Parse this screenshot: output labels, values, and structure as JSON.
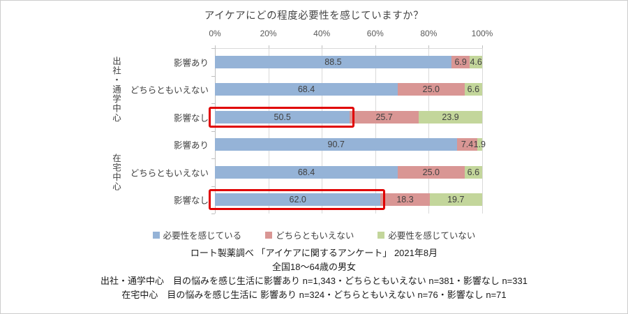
{
  "title": "アイケアにどの程度必要性を感じていますか？",
  "chart_data": {
    "type": "bar",
    "orientation": "horizontal",
    "stacked": true,
    "title": "アイケアにどの程度必要性を感じていますか？",
    "x_axis": {
      "min": 0,
      "max": 100,
      "tick_step": 20,
      "ticks": [
        "0%",
        "20%",
        "40%",
        "60%",
        "80%",
        "100%"
      ]
    },
    "series": [
      {
        "name": "必要性を感じている",
        "color": "#95B3D7"
      },
      {
        "name": "どちらともいえない",
        "color": "#D99694"
      },
      {
        "name": "必要性を感じていない",
        "color": "#C3D69B"
      }
    ],
    "groups": [
      {
        "label": "出社・通学中心",
        "rows": [
          {
            "label": "影響あり",
            "values": [
              88.5,
              6.9,
              4.6
            ],
            "highlighted": false
          },
          {
            "label": "どちらともいえない",
            "values": [
              68.4,
              25.0,
              6.6
            ],
            "highlighted": false
          },
          {
            "label": "影響なし",
            "values": [
              50.5,
              25.7,
              23.9
            ],
            "highlighted": true
          }
        ]
      },
      {
        "label": "在宅中心",
        "rows": [
          {
            "label": "影響あり",
            "values": [
              90.7,
              7.4,
              1.9
            ],
            "highlighted": false
          },
          {
            "label": "どちらともいえない",
            "values": [
              68.4,
              25.0,
              6.6
            ],
            "highlighted": false
          },
          {
            "label": "影響なし",
            "values": [
              62.0,
              18.3,
              19.7
            ],
            "highlighted": true
          }
        ]
      }
    ],
    "highlight_color": "#E00000",
    "grid": true,
    "legend_position": "bottom"
  },
  "legend": [
    {
      "label": "必要性を感じている",
      "color": "#95B3D7"
    },
    {
      "label": "どちらともいえない",
      "color": "#D99694"
    },
    {
      "label": "必要性を感じていない",
      "color": "#C3D69B"
    }
  ],
  "footnotes": [
    "ロート製薬調べ 「アイケアに関するアンケート」 2021年8月",
    "全国18～64歳の男女",
    "出社・通学中心　目の悩みを感じ生活に影響あり n=1,343・どちらともいえない n=381・影響なし n=331",
    "在宅中心　目の悩みを感じ生活に 影響あり n=324・どちらともいえない n=76・影響なし n=71"
  ]
}
